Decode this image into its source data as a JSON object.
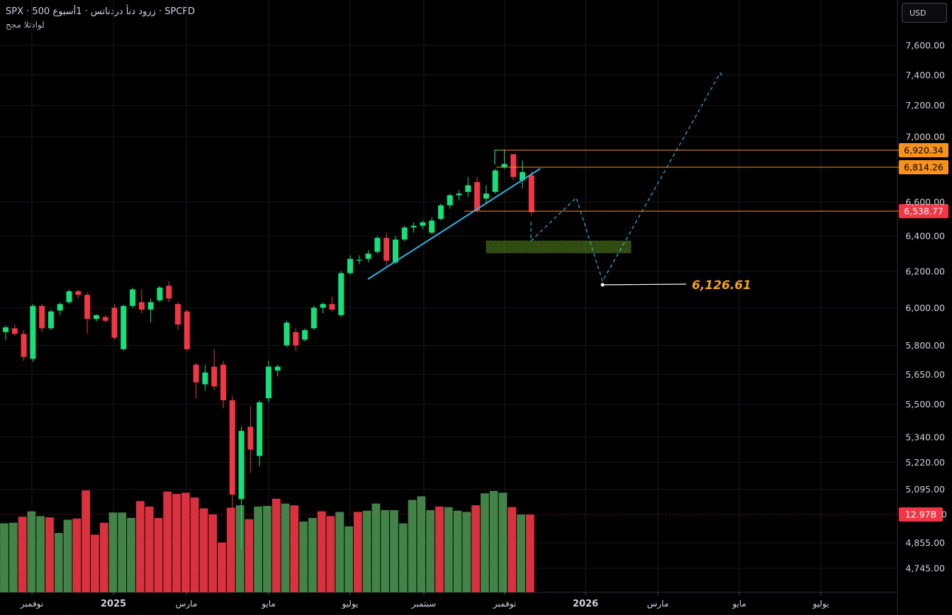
{
  "header": {
    "title": "SPX · 500 زرود دنأ دردناتس · 1أسبوع · SPCFD",
    "subtitle": "لوادتلا مجح"
  },
  "toolbar": {
    "currency_label": "USD"
  },
  "chart_data": {
    "type": "candlestick",
    "title": "",
    "y_ticks": [
      "7,600.00",
      "7,400.00",
      "7,200.00",
      "7,000.00",
      "6,600.00",
      "6,400.00",
      "6,200.00",
      "6,000.00",
      "5,800.00",
      "5,650.00",
      "5,500.00",
      "5,340.00",
      "5,220.00",
      "5,095.00",
      "4,855.00",
      "4,745.00"
    ],
    "y_tick_values": [
      7600,
      7400,
      7200,
      7000,
      6600,
      6400,
      6200,
      6000,
      5800,
      5650,
      5500,
      5340,
      5220,
      5095,
      4855,
      4745
    ],
    "x_ticks": [
      {
        "label": "نوفمبر",
        "date": "2024-11"
      },
      {
        "label": "2025",
        "date": "2025-01",
        "year": true
      },
      {
        "label": "مارس",
        "date": "2025-03"
      },
      {
        "label": "مايو",
        "date": "2025-05"
      },
      {
        "label": "يوليو",
        "date": "2025-07"
      },
      {
        "label": "سبتمبر",
        "date": "2025-09"
      },
      {
        "label": "نوفمبر",
        "date": "2025-11"
      },
      {
        "label": "2026",
        "date": "2026-01",
        "year": true
      },
      {
        "label": "مارس",
        "date": "2026-03"
      },
      {
        "label": "مايو",
        "date": "2026-05"
      },
      {
        "label": "يوليو",
        "date": "2026-07"
      }
    ],
    "price_levels": [
      {
        "label": "6,920.34",
        "value": 6920.34,
        "color": "#f7931a",
        "line": "#f7931a"
      },
      {
        "label": "6,814.26",
        "value": 6814.26,
        "color": "#f7931a",
        "line": "#f7931a"
      },
      {
        "label": "6,538.77",
        "value": 6538.77,
        "color": "#f23645",
        "line": "#f7931a"
      }
    ],
    "volume_badge": {
      "label": "12.97B",
      "color": "#f23645"
    },
    "volume_hidden_tick": "0",
    "target": {
      "label": "6,126.61",
      "value": 6126.61
    },
    "candles": [
      {
        "o": 5870,
        "h": 5905,
        "l": 5830,
        "c": 5895
      },
      {
        "o": 5890,
        "h": 5910,
        "l": 5850,
        "c": 5860
      },
      {
        "o": 5860,
        "h": 5880,
        "l": 5720,
        "c": 5740
      },
      {
        "o": 5730,
        "h": 6020,
        "l": 5715,
        "c": 6010
      },
      {
        "o": 6010,
        "h": 6020,
        "l": 5870,
        "c": 5890
      },
      {
        "o": 5890,
        "h": 5990,
        "l": 5880,
        "c": 5980
      },
      {
        "o": 5985,
        "h": 6030,
        "l": 5960,
        "c": 6020
      },
      {
        "o": 6030,
        "h": 6100,
        "l": 6020,
        "c": 6090
      },
      {
        "o": 6090,
        "h": 6100,
        "l": 6050,
        "c": 6070
      },
      {
        "o": 6070,
        "h": 6085,
        "l": 5860,
        "c": 5940
      },
      {
        "o": 5940,
        "h": 5965,
        "l": 5925,
        "c": 5960
      },
      {
        "o": 5950,
        "h": 5960,
        "l": 5920,
        "c": 5930
      },
      {
        "o": 6000,
        "h": 6020,
        "l": 5830,
        "c": 5840
      },
      {
        "o": 5780,
        "h": 6015,
        "l": 5770,
        "c": 6010
      },
      {
        "o": 6010,
        "h": 6110,
        "l": 6000,
        "c": 6100
      },
      {
        "o": 6030,
        "h": 6100,
        "l": 5970,
        "c": 5990
      },
      {
        "o": 5990,
        "h": 6050,
        "l": 5920,
        "c": 6030
      },
      {
        "o": 6040,
        "h": 6120,
        "l": 6030,
        "c": 6110
      },
      {
        "o": 6120,
        "h": 6145,
        "l": 6030,
        "c": 6050
      },
      {
        "o": 6020,
        "h": 6030,
        "l": 5880,
        "c": 5910
      },
      {
        "o": 5980,
        "h": 5990,
        "l": 5770,
        "c": 5780
      },
      {
        "o": 5700,
        "h": 5710,
        "l": 5530,
        "c": 5610
      },
      {
        "o": 5600,
        "h": 5700,
        "l": 5570,
        "c": 5660
      },
      {
        "o": 5690,
        "h": 5780,
        "l": 5570,
        "c": 5590
      },
      {
        "o": 5700,
        "h": 5720,
        "l": 5480,
        "c": 5520
      },
      {
        "o": 5520,
        "h": 5540,
        "l": 4840,
        "c": 5070
      },
      {
        "o": 5050,
        "h": 5390,
        "l": 4830,
        "c": 5370
      },
      {
        "o": 5390,
        "h": 5490,
        "l": 5170,
        "c": 5280
      },
      {
        "o": 5250,
        "h": 5520,
        "l": 5200,
        "c": 5510
      },
      {
        "o": 5530,
        "h": 5720,
        "l": 5510,
        "c": 5690
      },
      {
        "o": 5670,
        "h": 5700,
        "l": 5640,
        "c": 5690
      },
      {
        "o": 5800,
        "h": 5930,
        "l": 5790,
        "c": 5920
      },
      {
        "o": 5870,
        "h": 5890,
        "l": 5770,
        "c": 5800
      },
      {
        "o": 5830,
        "h": 5890,
        "l": 5820,
        "c": 5880
      },
      {
        "o": 5890,
        "h": 6010,
        "l": 5880,
        "c": 6000
      },
      {
        "o": 6000,
        "h": 6030,
        "l": 5970,
        "c": 6020
      },
      {
        "o": 6020,
        "h": 6060,
        "l": 5980,
        "c": 5990
      },
      {
        "o": 5960,
        "h": 6200,
        "l": 5950,
        "c": 6190
      },
      {
        "o": 6190,
        "h": 6290,
        "l": 6180,
        "c": 6270
      },
      {
        "o": 6260,
        "h": 6290,
        "l": 6240,
        "c": 6265
      },
      {
        "o": 6270,
        "h": 6320,
        "l": 6250,
        "c": 6300
      },
      {
        "o": 6310,
        "h": 6400,
        "l": 6300,
        "c": 6390
      },
      {
        "o": 6390,
        "h": 6420,
        "l": 6230,
        "c": 6260
      },
      {
        "o": 6250,
        "h": 6400,
        "l": 6240,
        "c": 6380
      },
      {
        "o": 6380,
        "h": 6460,
        "l": 6370,
        "c": 6450
      },
      {
        "o": 6450,
        "h": 6480,
        "l": 6420,
        "c": 6460
      },
      {
        "o": 6460,
        "h": 6490,
        "l": 6440,
        "c": 6480
      },
      {
        "o": 6420,
        "h": 6510,
        "l": 6410,
        "c": 6490
      },
      {
        "o": 6500,
        "h": 6590,
        "l": 6490,
        "c": 6580
      },
      {
        "o": 6580,
        "h": 6650,
        "l": 6560,
        "c": 6640
      },
      {
        "o": 6640,
        "h": 6670,
        "l": 6610,
        "c": 6650
      },
      {
        "o": 6660,
        "h": 6750,
        "l": 6630,
        "c": 6700
      },
      {
        "o": 6720,
        "h": 6750,
        "l": 6540,
        "c": 6550
      },
      {
        "o": 6620,
        "h": 6700,
        "l": 6590,
        "c": 6650
      },
      {
        "o": 6660,
        "h": 6800,
        "l": 6650,
        "c": 6790
      },
      {
        "o": 6810,
        "h": 6920,
        "l": 6800,
        "c": 6830
      },
      {
        "o": 6890,
        "h": 6890,
        "l": 6730,
        "c": 6750
      },
      {
        "o": 6730,
        "h": 6850,
        "l": 6680,
        "c": 6780
      },
      {
        "o": 6760,
        "h": 6790,
        "l": 6520,
        "c": 6540
      }
    ],
    "volume_up": [
      true,
      true,
      false,
      true,
      true,
      false,
      true,
      true,
      false,
      false,
      false,
      false,
      true,
      true,
      true,
      false,
      false,
      false,
      false,
      false,
      false,
      false,
      false,
      false,
      false,
      false,
      true,
      false,
      true,
      true,
      false,
      true,
      false,
      true,
      true,
      false,
      false,
      true,
      true,
      false,
      true,
      true,
      true,
      true,
      true,
      true,
      true,
      true,
      false,
      true,
      true,
      true,
      false,
      true,
      true,
      true,
      false,
      true,
      false
    ],
    "volume_values": [
      11.5,
      11.6,
      12.6,
      13.5,
      12.7,
      12.5,
      9.9,
      12.1,
      12.3,
      17.0,
      9.6,
      11.6,
      13.3,
      13.3,
      12.4,
      15.2,
      14.3,
      12.4,
      16.8,
      16.4,
      16.6,
      15.8,
      14.0,
      13.0,
      8.3,
      14.1,
      14.5,
      12.2,
      14.3,
      14.4,
      15.6,
      14.8,
      14.5,
      11.8,
      12.4,
      13.5,
      12.7,
      13.4,
      11.0,
      13.4,
      13.6,
      14.8,
      13.7,
      13.7,
      11.5,
      15.4,
      16.0,
      13.7,
      14.3,
      14.2,
      13.6,
      13.4,
      14.5,
      16.5,
      16.9,
      16.6,
      14.2,
      12.97,
      12.97
    ]
  }
}
